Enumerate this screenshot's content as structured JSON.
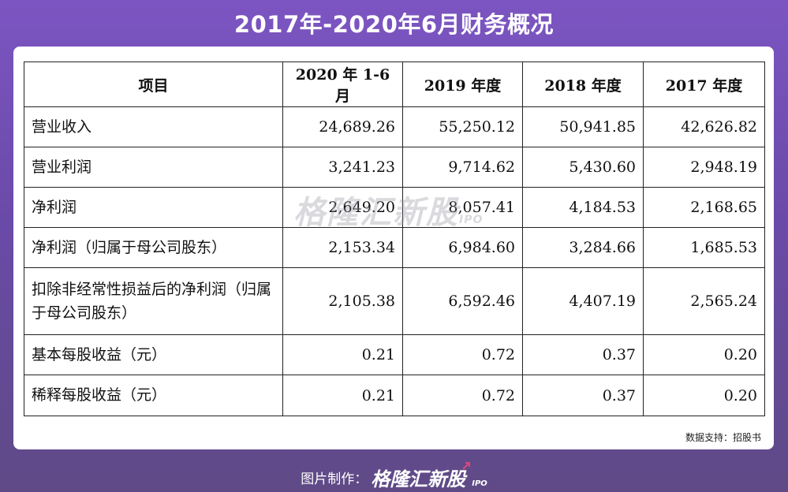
{
  "title": "2017年-2020年6月财务概况",
  "table": {
    "headers": [
      "项目",
      "2020 年 1-6 月",
      "2019 年度",
      "2018 年度",
      "2017 年度"
    ],
    "rows": [
      {
        "item": "营业收入",
        "values": [
          "24,689.26",
          "55,250.12",
          "50,941.85",
          "42,626.82"
        ]
      },
      {
        "item": "营业利润",
        "values": [
          "3,241.23",
          "9,714.62",
          "5,430.60",
          "2,948.19"
        ]
      },
      {
        "item": "净利润",
        "values": [
          "2,649.20",
          "8,057.41",
          "4,184.53",
          "2,168.65"
        ]
      },
      {
        "item": "净利润（归属于母公司股东）",
        "values": [
          "2,153.34",
          "6,984.60",
          "3,284.66",
          "1,685.53"
        ]
      },
      {
        "item": "扣除非经常性损益后的净利润（归属于母公司股东）",
        "values": [
          "2,105.38",
          "6,592.46",
          "4,407.19",
          "2,565.24"
        ]
      },
      {
        "item": "基本每股收益（元）",
        "values": [
          "0.21",
          "0.72",
          "0.37",
          "0.20"
        ]
      },
      {
        "item": "稀释每股收益（元）",
        "values": [
          "0.21",
          "0.72",
          "0.37",
          "0.20"
        ]
      }
    ]
  },
  "source": "数据支持：招股书",
  "watermark": {
    "brand": "格隆汇新股",
    "sub": "IPO"
  },
  "footer": {
    "label": "图片制作：",
    "brand": "格隆汇新股",
    "brand_sub": "IPO"
  },
  "colors": {
    "background_top": "#7c55c2",
    "background_bottom": "#5f4a86",
    "card": "#ffffff",
    "brand_arrow": "#e0457b"
  }
}
